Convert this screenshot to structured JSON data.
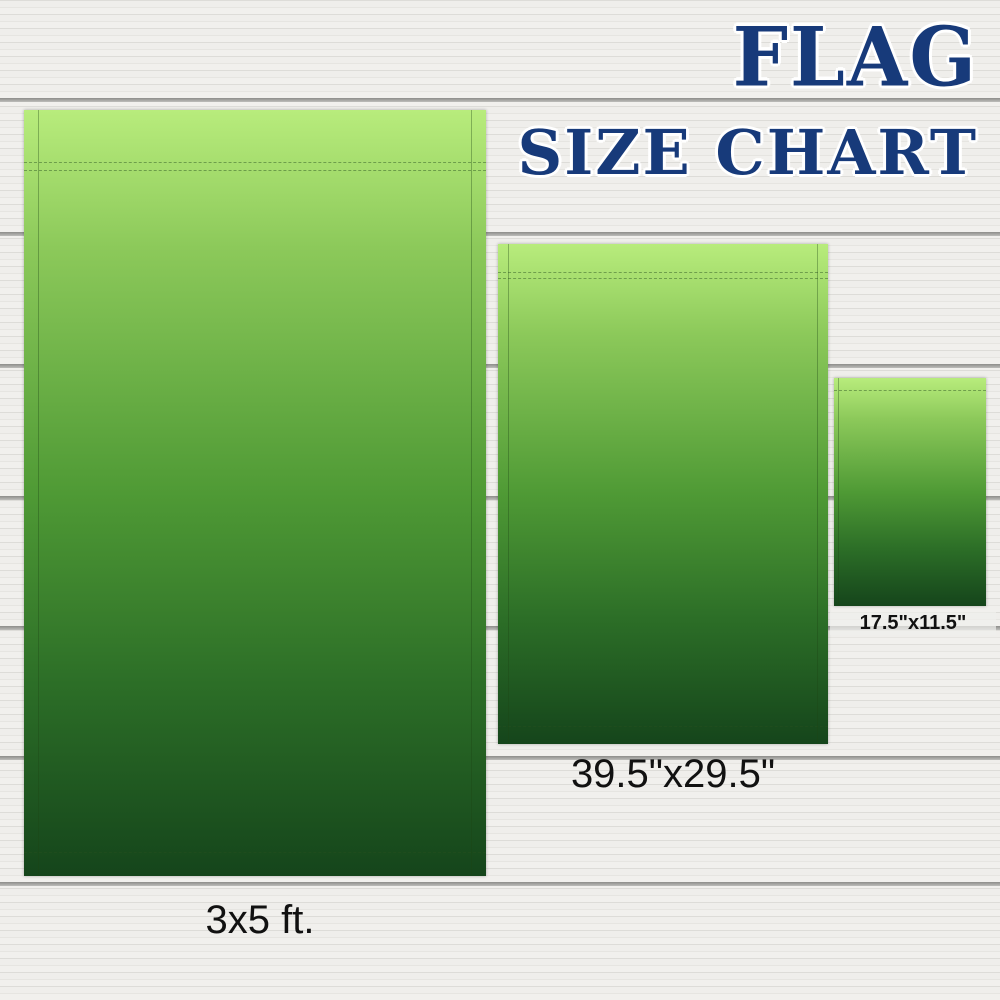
{
  "title": {
    "line1": "FLAG",
    "line2": "SIZE CHART"
  },
  "flags": [
    {
      "size_label": "3x5 ft."
    },
    {
      "size_label": "39.5\"x29.5\""
    },
    {
      "size_label": "17.5\"x11.5\""
    }
  ],
  "colors": {
    "title": "#173a7a",
    "flag_top": "#b8ec7c",
    "flag_bottom": "#15451b"
  }
}
